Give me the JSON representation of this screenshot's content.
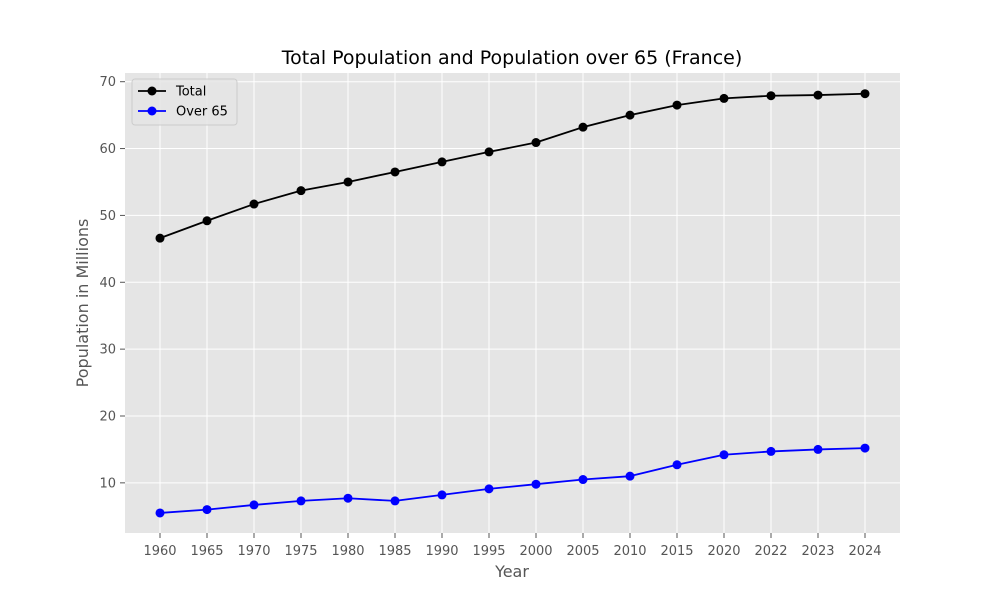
{
  "chart_data": {
    "type": "line",
    "title": "Total Population and Population over 65 (France)",
    "xlabel": "Year",
    "ylabel": "Population in Millions",
    "categories": [
      "1960",
      "1965",
      "1970",
      "1975",
      "1980",
      "1985",
      "1990",
      "1995",
      "2000",
      "2005",
      "2010",
      "2015",
      "2020",
      "2022",
      "2023",
      "2024"
    ],
    "yticks": [
      10,
      20,
      30,
      40,
      50,
      60,
      70
    ],
    "ylim": [
      2.5,
      71.3
    ],
    "grid": true,
    "legend_position": "top-left",
    "series": [
      {
        "name": "Total",
        "color": "#000000",
        "marker": "circle",
        "values": [
          46.6,
          49.2,
          51.7,
          53.7,
          55.0,
          56.5,
          58.0,
          59.5,
          60.9,
          63.2,
          65.0,
          66.5,
          67.5,
          67.9,
          68.0,
          68.2
        ]
      },
      {
        "name": "Over 65",
        "color": "#0000ff",
        "marker": "circle",
        "values": [
          5.5,
          6.0,
          6.7,
          7.3,
          7.7,
          7.3,
          8.2,
          9.1,
          9.8,
          10.5,
          11.0,
          12.7,
          14.2,
          14.7,
          15.0,
          15.2
        ]
      }
    ],
    "colors": {
      "plot_background": "#e5e5e5",
      "grid": "#ffffff"
    }
  }
}
